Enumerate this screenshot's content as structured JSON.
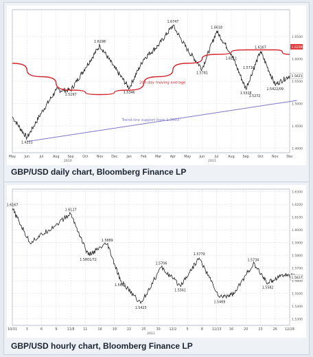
{
  "captions": {
    "daily": "GBP/USD daily chart, Bloomberg Finance LP",
    "hourly": "GBP/USD hourly chart, Bloomberg Finance LP"
  },
  "colors": {
    "price": "#1a1a1a",
    "ma": "#d4242b",
    "trend": "#7b74c9",
    "grid": "#d3d7df",
    "highlight": "#e23b3b"
  },
  "chart_data": [
    {
      "type": "line",
      "title": "GBP/USD daily chart, Bloomberg Finance LP",
      "ylim": [
        1.39,
        1.71
      ],
      "y_ticks": [
        "1.4000",
        "1.4500",
        "1.5000",
        "1.5500",
        "1.6000",
        "1.6500"
      ],
      "y_tick_values": [
        1.4,
        1.45,
        1.5,
        1.55,
        1.6,
        1.65
      ],
      "x_ticks": [
        "May",
        "Jun",
        "Jul",
        "Aug",
        "Sep",
        "Oct",
        "Nov",
        "Dec",
        "Jan",
        "Feb",
        "Mar",
        "Apr",
        "May",
        "Jun",
        "Jul",
        "Aug",
        "Sep",
        "Oct",
        "Nov",
        "Dec"
      ],
      "year_labels": [
        "2010",
        "2011"
      ],
      "last_price_label": "1.5621",
      "highlight_label": "1.6269",
      "series": [
        {
          "key": "price",
          "style": "price",
          "x": [
            0,
            1,
            2,
            3,
            4,
            5,
            6,
            7,
            8,
            9,
            10,
            11,
            12,
            13,
            14,
            15,
            16,
            17,
            18,
            19
          ],
          "y": [
            1.47,
            1.4231,
            1.48,
            1.53,
            1.5297,
            1.58,
            1.6298,
            1.58,
            1.5346,
            1.6,
            1.63,
            1.6747,
            1.62,
            1.5781,
            1.6618,
            1.6111,
            1.5328,
            1.6167,
            1.5422,
            1.5621
          ]
        },
        {
          "key": "ma",
          "name": "200 day moving average",
          "style": "ma",
          "x": [
            0,
            2,
            4,
            6,
            8,
            10,
            12,
            14,
            16,
            18,
            19
          ],
          "y": [
            1.59,
            1.56,
            1.53,
            1.52,
            1.53,
            1.56,
            1.59,
            1.61,
            1.62,
            1.62,
            1.61
          ]
        },
        {
          "key": "trend",
          "name": "Trend-line support from 1.3503",
          "style": "trend",
          "x": [
            1,
            19.5
          ],
          "y": [
            1.415,
            1.507
          ]
        }
      ],
      "annotations": [
        {
          "text": "1.4231",
          "x": 1,
          "y": 1.4231,
          "pos": "below"
        },
        {
          "text": "1.5297",
          "x": 4,
          "y": 1.5297,
          "pos": "below"
        },
        {
          "text": "1.6298",
          "x": 6,
          "y": 1.6298,
          "pos": "above"
        },
        {
          "text": "1.5346",
          "x": 8,
          "y": 1.5346,
          "pos": "below"
        },
        {
          "text": "1.6747",
          "x": 11,
          "y": 1.6747,
          "pos": "above"
        },
        {
          "text": "1.5781",
          "x": 13,
          "y": 1.5781,
          "pos": "below"
        },
        {
          "text": "1.6618",
          "x": 14,
          "y": 1.6618,
          "pos": "above"
        },
        {
          "text": "1.6111",
          "x": 15,
          "y": 1.6111,
          "pos": "below"
        },
        {
          "text": "1.5716",
          "x": 16.2,
          "y": 1.5716,
          "pos": "above"
        },
        {
          "text": "1.5328",
          "x": 16,
          "y": 1.5328,
          "pos": "below"
        },
        {
          "text": "1.5272",
          "x": 16.6,
          "y": 1.5272,
          "pos": "below"
        },
        {
          "text": "1.6167",
          "x": 17,
          "y": 1.6167,
          "pos": "above"
        },
        {
          "text": "1.5422/09",
          "x": 18,
          "y": 1.5422,
          "pos": "below"
        }
      ],
      "text_labels": [
        {
          "text": "200 day moving average",
          "x": 8.7,
          "y": 1.545,
          "color": "ma"
        },
        {
          "text": "Trend-line support from 1.3503",
          "x": 7.5,
          "y": 1.461,
          "color": "trend"
        }
      ]
    },
    {
      "type": "line",
      "title": "GBP/USD hourly chart, Bloomberg Finance LP",
      "ylim": [
        1.525,
        1.632
      ],
      "y_ticks": [
        "1.5300",
        "1.5400",
        "1.5500",
        "1.5600",
        "1.5700",
        "1.5800",
        "1.5900",
        "1.6000",
        "1.6100",
        "1.6200",
        "1.6300"
      ],
      "y_tick_values": [
        1.53,
        1.54,
        1.55,
        1.56,
        1.57,
        1.58,
        1.59,
        1.6,
        1.61,
        1.62,
        1.63
      ],
      "x_ticks": [
        "10/31",
        "3",
        "6",
        "9",
        "11/8",
        "11",
        "16",
        "19",
        "22",
        "25",
        "30",
        "12/2",
        "5",
        "8",
        "12/13",
        "16",
        "20",
        "23",
        "26",
        "12/28"
      ],
      "year_labels": [
        "2011"
      ],
      "last_price_label": "1.5627",
      "series": [
        {
          "key": "price",
          "style": "price",
          "x": [
            0,
            1.2,
            2.5,
            4,
            5.2,
            6.5,
            7.4,
            8.8,
            10.2,
            11.5,
            12.8,
            14.2,
            15.2,
            16.5,
            17.5,
            18.5,
            19.7
          ],
          "y": [
            1.6167,
            1.59,
            1.6,
            1.6127,
            1.5801,
            1.5889,
            1.5601,
            1.5423,
            1.5706,
            1.5561,
            1.5779,
            1.5469,
            1.55,
            1.5734,
            1.5582,
            1.565,
            1.5627
          ]
        }
      ],
      "annotations": [
        {
          "text": "1.6167",
          "x": 0,
          "y": 1.6167,
          "pos": "above"
        },
        {
          "text": "1.6127",
          "x": 4,
          "y": 1.6127,
          "pos": "above"
        },
        {
          "text": "1.5801/72",
          "x": 5.2,
          "y": 1.5801,
          "pos": "below"
        },
        {
          "text": "1.5889",
          "x": 6.5,
          "y": 1.5889,
          "pos": "above"
        },
        {
          "text": "1.5601",
          "x": 7.4,
          "y": 1.5601,
          "pos": "below"
        },
        {
          "text": "1.5423",
          "x": 8.8,
          "y": 1.5423,
          "pos": "below"
        },
        {
          "text": "1.5706",
          "x": 10.2,
          "y": 1.5706,
          "pos": "above"
        },
        {
          "text": "1.5561",
          "x": 11.5,
          "y": 1.5561,
          "pos": "below"
        },
        {
          "text": "1.5779",
          "x": 12.8,
          "y": 1.5779,
          "pos": "above"
        },
        {
          "text": "1.5469",
          "x": 14.2,
          "y": 1.5469,
          "pos": "below"
        },
        {
          "text": "1.5734",
          "x": 16.5,
          "y": 1.5734,
          "pos": "above"
        },
        {
          "text": "1.5582",
          "x": 17.5,
          "y": 1.5582,
          "pos": "below"
        }
      ],
      "text_labels": []
    }
  ]
}
